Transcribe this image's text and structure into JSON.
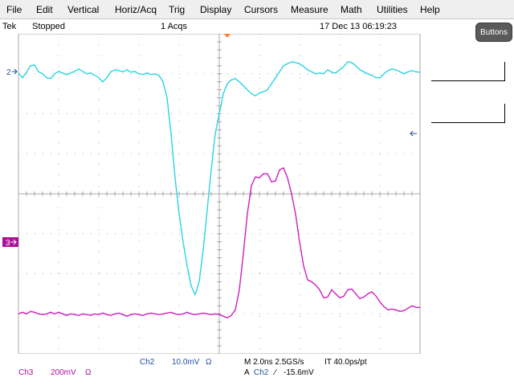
{
  "menu": {
    "items": [
      "File",
      "Edit",
      "Vertical",
      "Horiz/Acq",
      "Trig",
      "Display",
      "Cursors",
      "Measure",
      "Math",
      "Utilities",
      "Help"
    ]
  },
  "status": {
    "brand": "Tek",
    "run_state": "Stopped",
    "acquisitions": "1 Acqs",
    "datetime": "17 Dec 13 06:19:23"
  },
  "right_panel": {
    "buttons_label": "Buttons"
  },
  "channels": {
    "ch2": {
      "marker": "2",
      "label": "Ch2",
      "scale": "10.0mV",
      "coupling": "Ω",
      "color": "#2ad4e0"
    },
    "ch3": {
      "marker": "3",
      "label": "Ch3",
      "scale": "200mV",
      "coupling": "Ω",
      "color": "#cc1fbf"
    }
  },
  "timebase": {
    "horizontal": "M 2.0ns 2.5GS/s",
    "interval": "IT 40.0ps/pt"
  },
  "trigger": {
    "mode": "A",
    "source": "Ch2",
    "slope_symbol": "⁄",
    "level": "-15.6mV"
  },
  "colors": {
    "grid": "#a9a9a9",
    "trigger_marker": "#ff7f27",
    "ch_label_blue": "#1f4f9a"
  },
  "chart_data": {
    "type": "line",
    "title": "",
    "xlabel": "",
    "ylabel": "",
    "grid": true,
    "divisions": {
      "x": 10,
      "y": 8
    },
    "xlim": [
      0,
      10
    ],
    "ylim": [
      -4,
      4
    ],
    "series": [
      {
        "name": "Ch2",
        "points": [
          [
            0,
            3.02
          ],
          [
            0.1,
            2.9
          ],
          [
            0.2,
            3.04
          ],
          [
            0.3,
            3.2
          ],
          [
            0.4,
            3.22
          ],
          [
            0.5,
            3.05
          ],
          [
            0.6,
            3.0
          ],
          [
            0.7,
            2.9
          ],
          [
            0.8,
            2.88
          ],
          [
            0.9,
            3.0
          ],
          [
            1.0,
            3.06
          ],
          [
            1.1,
            3.02
          ],
          [
            1.2,
            2.98
          ],
          [
            1.3,
            3.02
          ],
          [
            1.4,
            3.06
          ],
          [
            1.5,
            3.12
          ],
          [
            1.6,
            3.06
          ],
          [
            1.7,
            3.0
          ],
          [
            1.8,
            3.02
          ],
          [
            1.9,
            2.96
          ],
          [
            2.0,
            2.9
          ],
          [
            2.1,
            2.8
          ],
          [
            2.2,
            2.9
          ],
          [
            2.3,
            3.05
          ],
          [
            2.4,
            3.1
          ],
          [
            2.5,
            3.08
          ],
          [
            2.6,
            3.05
          ],
          [
            2.7,
            3.1
          ],
          [
            2.8,
            3.04
          ],
          [
            2.9,
            3.06
          ],
          [
            3.0,
            3.0
          ],
          [
            3.1,
            2.98
          ],
          [
            3.2,
            3.02
          ],
          [
            3.3,
            2.98
          ],
          [
            3.4,
            3.0
          ],
          [
            3.5,
            2.96
          ],
          [
            3.6,
            2.8
          ],
          [
            3.7,
            2.4
          ],
          [
            3.8,
            1.5
          ],
          [
            3.9,
            0.4
          ],
          [
            4.0,
            -0.5
          ],
          [
            4.1,
            -1.2
          ],
          [
            4.2,
            -1.8
          ],
          [
            4.3,
            -2.3
          ],
          [
            4.4,
            -2.52
          ],
          [
            4.5,
            -2.2
          ],
          [
            4.6,
            -1.4
          ],
          [
            4.7,
            -0.4
          ],
          [
            4.8,
            0.6
          ],
          [
            4.9,
            1.5
          ],
          [
            5.0,
            2.0
          ],
          [
            5.1,
            2.5
          ],
          [
            5.2,
            2.75
          ],
          [
            5.3,
            2.85
          ],
          [
            5.4,
            2.88
          ],
          [
            5.5,
            2.8
          ],
          [
            5.6,
            2.7
          ],
          [
            5.7,
            2.6
          ],
          [
            5.8,
            2.5
          ],
          [
            5.9,
            2.45
          ],
          [
            6.0,
            2.52
          ],
          [
            6.1,
            2.55
          ],
          [
            6.2,
            2.6
          ],
          [
            6.3,
            2.75
          ],
          [
            6.4,
            2.9
          ],
          [
            6.5,
            3.05
          ],
          [
            6.6,
            3.2
          ],
          [
            6.7,
            3.25
          ],
          [
            6.8,
            3.3
          ],
          [
            6.9,
            3.28
          ],
          [
            7.0,
            3.25
          ],
          [
            7.1,
            3.18
          ],
          [
            7.2,
            3.1
          ],
          [
            7.3,
            3.05
          ],
          [
            7.4,
            3.0
          ],
          [
            7.5,
            3.02
          ],
          [
            7.6,
            3.0
          ],
          [
            7.7,
            3.1
          ],
          [
            7.8,
            3.04
          ],
          [
            7.9,
            3.02
          ],
          [
            8.0,
            3.1
          ],
          [
            8.1,
            3.18
          ],
          [
            8.2,
            3.3
          ],
          [
            8.3,
            3.28
          ],
          [
            8.4,
            3.2
          ],
          [
            8.5,
            3.1
          ],
          [
            8.6,
            3.05
          ],
          [
            8.7,
            3.0
          ],
          [
            8.8,
            2.96
          ],
          [
            8.9,
            2.9
          ],
          [
            9.0,
            2.9
          ],
          [
            9.1,
            3.0
          ],
          [
            9.2,
            3.08
          ],
          [
            9.3,
            3.12
          ],
          [
            9.4,
            3.1
          ],
          [
            9.5,
            3.05
          ],
          [
            9.6,
            3.0
          ],
          [
            9.7,
            3.05
          ],
          [
            9.8,
            3.08
          ],
          [
            9.9,
            3.05
          ],
          [
            10.0,
            3.04
          ]
        ]
      },
      {
        "name": "Ch3",
        "points": [
          [
            0,
            -3.0
          ],
          [
            0.1,
            -2.96
          ],
          [
            0.2,
            -3.0
          ],
          [
            0.3,
            -2.94
          ],
          [
            0.4,
            -2.96
          ],
          [
            0.5,
            -3.0
          ],
          [
            0.6,
            -3.02
          ],
          [
            0.7,
            -3.0
          ],
          [
            0.8,
            -2.96
          ],
          [
            0.9,
            -3.0
          ],
          [
            1.0,
            -2.96
          ],
          [
            1.1,
            -3.0
          ],
          [
            1.2,
            -3.04
          ],
          [
            1.3,
            -3.0
          ],
          [
            1.4,
            -3.02
          ],
          [
            1.5,
            -3.04
          ],
          [
            1.6,
            -3.0
          ],
          [
            1.7,
            -3.02
          ],
          [
            1.8,
            -3.04
          ],
          [
            1.9,
            -3.0
          ],
          [
            2.0,
            -3.02
          ],
          [
            2.1,
            -2.98
          ],
          [
            2.2,
            -3.02
          ],
          [
            2.3,
            -3.04
          ],
          [
            2.4,
            -3.0
          ],
          [
            2.5,
            -2.98
          ],
          [
            2.6,
            -3.02
          ],
          [
            2.7,
            -3.06
          ],
          [
            2.8,
            -3.02
          ],
          [
            2.9,
            -3.0
          ],
          [
            3.0,
            -3.02
          ],
          [
            3.1,
            -3.04
          ],
          [
            3.2,
            -3.0
          ],
          [
            3.3,
            -2.98
          ],
          [
            3.4,
            -3.0
          ],
          [
            3.5,
            -3.02
          ],
          [
            3.6,
            -3.0
          ],
          [
            3.7,
            -2.98
          ],
          [
            3.8,
            -2.96
          ],
          [
            3.9,
            -3.0
          ],
          [
            4.0,
            -3.02
          ],
          [
            4.1,
            -3.0
          ],
          [
            4.2,
            -2.96
          ],
          [
            4.3,
            -3.0
          ],
          [
            4.4,
            -3.02
          ],
          [
            4.5,
            -3.0
          ],
          [
            4.6,
            -2.98
          ],
          [
            4.7,
            -3.0
          ],
          [
            4.8,
            -3.02
          ],
          [
            4.9,
            -3.0
          ],
          [
            5.0,
            -3.02
          ],
          [
            5.1,
            -3.06
          ],
          [
            5.2,
            -3.1
          ],
          [
            5.3,
            -3.04
          ],
          [
            5.4,
            -2.9
          ],
          [
            5.5,
            -2.4
          ],
          [
            5.6,
            -1.5
          ],
          [
            5.7,
            -0.5
          ],
          [
            5.8,
            0.2
          ],
          [
            5.9,
            0.42
          ],
          [
            6.0,
            0.4
          ],
          [
            6.1,
            0.5
          ],
          [
            6.2,
            0.5
          ],
          [
            6.3,
            0.3
          ],
          [
            6.4,
            0.32
          ],
          [
            6.5,
            0.6
          ],
          [
            6.6,
            0.65
          ],
          [
            6.7,
            0.4
          ],
          [
            6.8,
            0.0
          ],
          [
            6.9,
            -0.5
          ],
          [
            7.0,
            -1.2
          ],
          [
            7.1,
            -1.8
          ],
          [
            7.2,
            -2.15
          ],
          [
            7.3,
            -2.2
          ],
          [
            7.4,
            -2.28
          ],
          [
            7.5,
            -2.4
          ],
          [
            7.6,
            -2.6
          ],
          [
            7.7,
            -2.58
          ],
          [
            7.8,
            -2.4
          ],
          [
            7.9,
            -2.5
          ],
          [
            8.0,
            -2.6
          ],
          [
            8.1,
            -2.56
          ],
          [
            8.2,
            -2.4
          ],
          [
            8.3,
            -2.38
          ],
          [
            8.4,
            -2.5
          ],
          [
            8.5,
            -2.62
          ],
          [
            8.6,
            -2.58
          ],
          [
            8.7,
            -2.5
          ],
          [
            8.8,
            -2.45
          ],
          [
            8.9,
            -2.55
          ],
          [
            9.0,
            -2.7
          ],
          [
            9.1,
            -2.82
          ],
          [
            9.2,
            -2.9
          ],
          [
            9.3,
            -2.88
          ],
          [
            9.4,
            -2.9
          ],
          [
            9.5,
            -2.94
          ],
          [
            9.6,
            -2.92
          ],
          [
            9.7,
            -2.86
          ],
          [
            9.8,
            -2.8
          ],
          [
            9.9,
            -2.84
          ],
          [
            10.0,
            -2.84
          ]
        ]
      }
    ]
  }
}
